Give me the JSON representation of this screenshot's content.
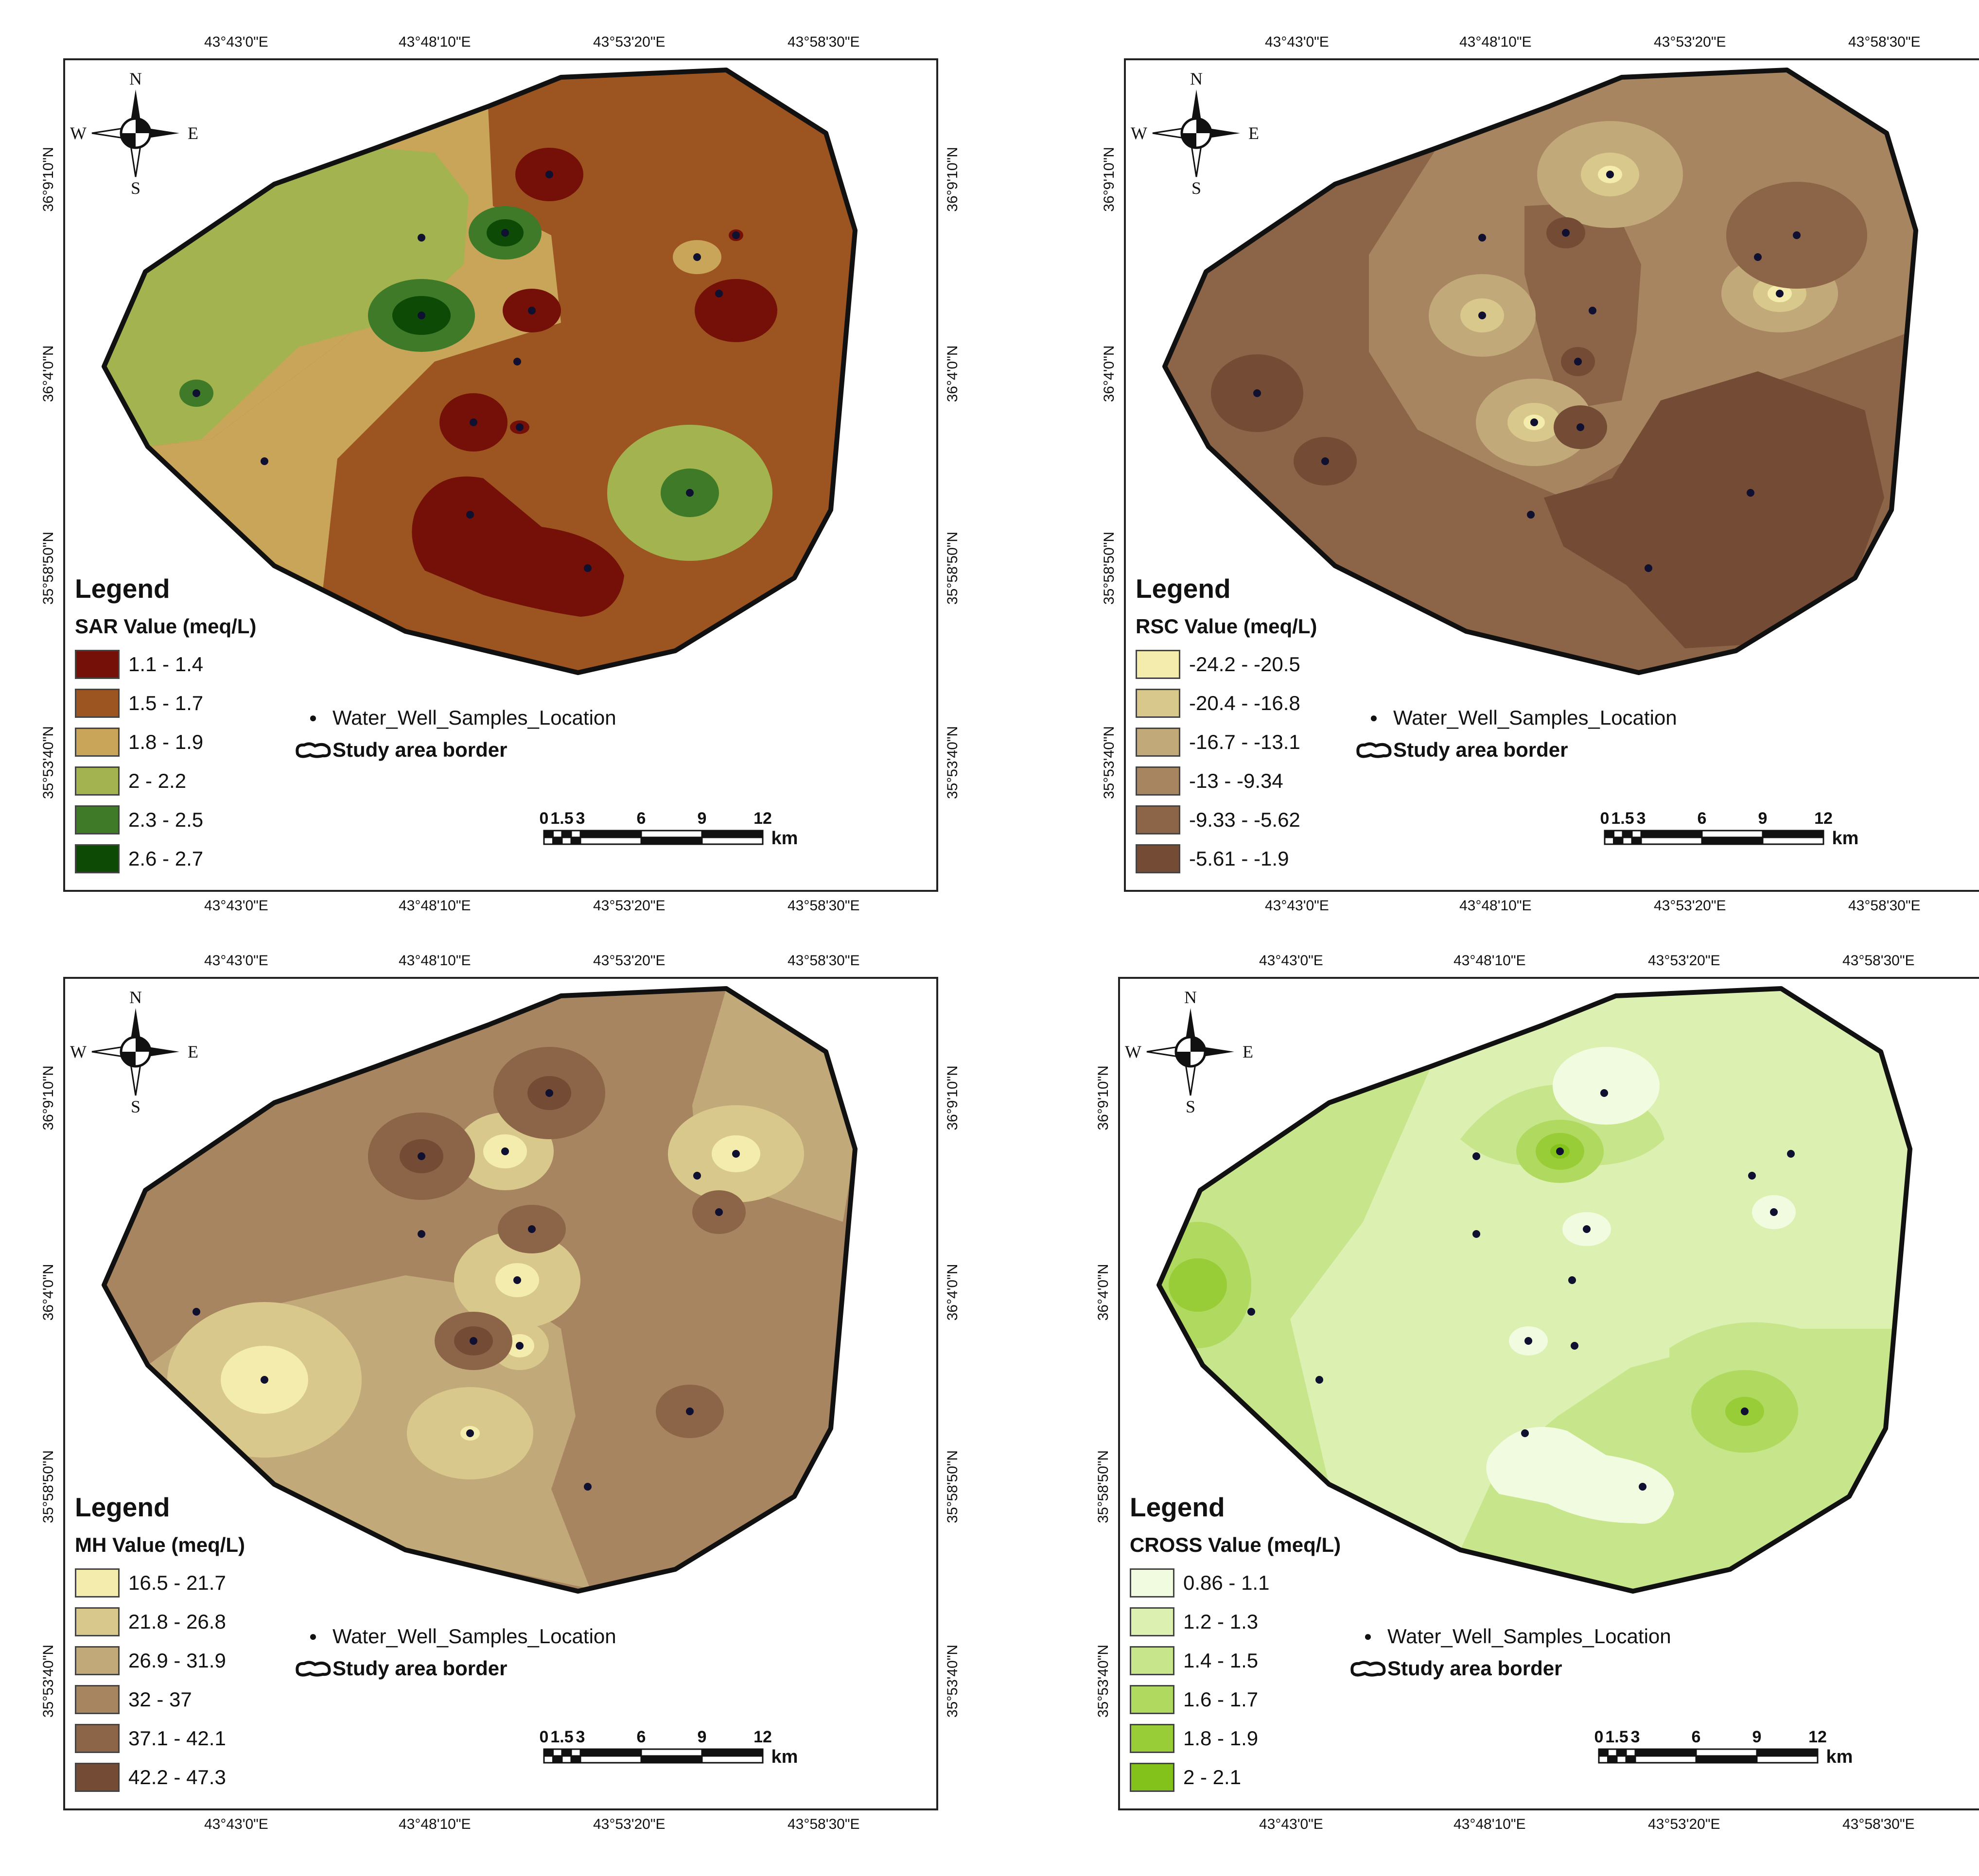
{
  "compass": {
    "n": "N",
    "s": "S",
    "e": "E",
    "w": "W"
  },
  "axes": {
    "lon_labels": [
      "43°43'0\"E",
      "43°48'10\"E",
      "43°53'20\"E",
      "43°58'30\"E"
    ],
    "lat_labels": [
      "36°9'10\"N",
      "36°4'0\"N",
      "35°58'50\"N",
      "35°53'40\"N"
    ]
  },
  "legend_common": {
    "title": "Legend",
    "well_label": "Water_Well_Samples_Location",
    "border_label": "Study area border"
  },
  "scalebar": {
    "ticks": [
      "0",
      "1.5",
      "3",
      "6",
      "9",
      "12"
    ],
    "unit": "km"
  },
  "panels": [
    {
      "id": "sar",
      "legend_title": "SAR Value (meq/L)",
      "classes": [
        {
          "label": "1.1 - 1.4",
          "color": "#741008"
        },
        {
          "label": "1.5 - 1.7",
          "color": "#9c5421"
        },
        {
          "label": "1.8 - 1.9",
          "color": "#c9a55a"
        },
        {
          "label": "2 - 2.2",
          "color": "#a3b34f"
        },
        {
          "label": "2.3 - 2.5",
          "color": "#3e7a27"
        },
        {
          "label": "2.6 - 2.7",
          "color": "#0c4a06"
        }
      ]
    },
    {
      "id": "rsc",
      "legend_title": "RSC Value (meq/L)",
      "classes": [
        {
          "label": "-24.2 - -20.5",
          "color": "#f3ecac"
        },
        {
          "label": "-20.4 - -16.8",
          "color": "#d9c88c"
        },
        {
          "label": "-16.7 - -13.1",
          "color": "#c1a97a"
        },
        {
          "label": "-13 - -9.34",
          "color": "#a78560"
        },
        {
          "label": "-9.33 - -5.62",
          "color": "#8c6548"
        },
        {
          "label": "-5.61 - -1.9",
          "color": "#744b35"
        }
      ]
    },
    {
      "id": "mh",
      "legend_title": "MH Value (meq/L)",
      "classes": [
        {
          "label": "16.5 - 21.7",
          "color": "#f3ecac"
        },
        {
          "label": "21.8 - 26.8",
          "color": "#d9c88c"
        },
        {
          "label": "26.9 - 31.9",
          "color": "#c1a97a"
        },
        {
          "label": "32 - 37",
          "color": "#a78560"
        },
        {
          "label": "37.1 - 42.1",
          "color": "#8c6548"
        },
        {
          "label": "42.2 - 47.3",
          "color": "#744b35"
        }
      ]
    },
    {
      "id": "cross",
      "legend_title": "CROSS Value (meq/L)",
      "classes": [
        {
          "label": "0.86 - 1.1",
          "color": "#f1fbdf"
        },
        {
          "label": "1.2 - 1.3",
          "color": "#dcf0b2"
        },
        {
          "label": "1.4 - 1.5",
          "color": "#c7e58a"
        },
        {
          "label": "1.6 - 1.7",
          "color": "#b0d95f"
        },
        {
          "label": "1.8 - 1.9",
          "color": "#99cd38"
        },
        {
          "label": "2 - 2.1",
          "color": "#82c21a"
        }
      ]
    }
  ]
}
